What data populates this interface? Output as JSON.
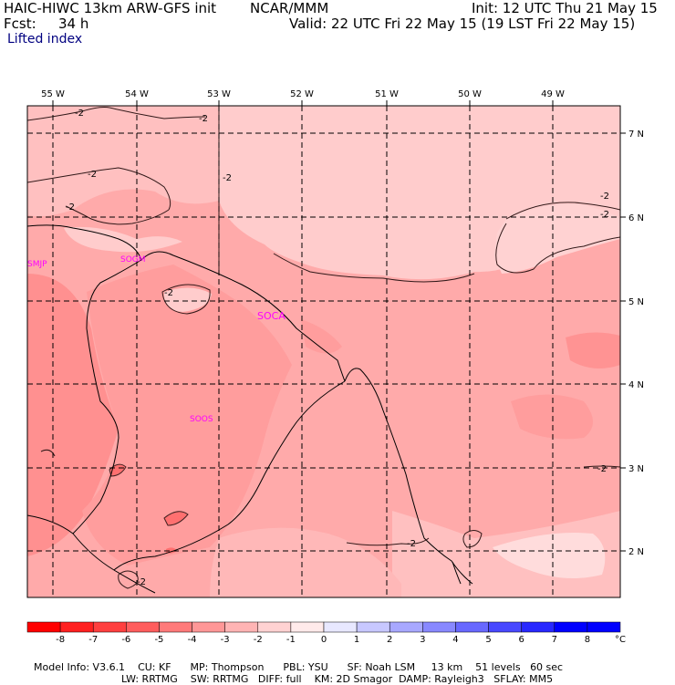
{
  "header": {
    "model": "HAIC-HIWC 13km ARW-GFS init",
    "org": "NCAR/MMM",
    "init": "Init: 12 UTC Thu 21 May 15",
    "fcst_label": "Fcst:",
    "fcst_value": "34 h",
    "valid": "Valid: 22 UTC Fri 22 May 15 (19 LST Fri 22 May 15)",
    "field": "Lifted index"
  },
  "map": {
    "lon_labels": [
      "55 W",
      "54 W",
      "53 W",
      "52 W",
      "51 W",
      "50 W",
      "49 W"
    ],
    "lat_labels": [
      "7 N",
      "6 N",
      "5 N",
      "4 N",
      "3 N",
      "2 N"
    ],
    "stations": [
      "SMJP",
      "SOGM",
      "SOCA",
      "SOOS"
    ],
    "contour_labels": [
      "-2",
      "-2",
      "-2",
      "-2",
      "-2",
      "-2",
      "-2",
      "-2",
      "-2",
      "-2",
      "-2"
    ]
  },
  "colorbar": {
    "unit": "°C",
    "ticks": [
      "-8",
      "-7",
      "-6",
      "-5",
      "-4",
      "-3",
      "-2",
      "-1",
      "0",
      "1",
      "2",
      "3",
      "4",
      "5",
      "6",
      "7",
      "8"
    ],
    "colors": [
      "#ff0000",
      "#ff2020",
      "#ff3f3f",
      "#ff5d5d",
      "#ff7a7a",
      "#ff9797",
      "#ffb4b4",
      "#ffd2d2",
      "#ffeaea",
      "#e8e8ff",
      "#c8c8ff",
      "#a8a8ff",
      "#8888ff",
      "#6868ff",
      "#4848ff",
      "#2828ff",
      "#0000ff"
    ]
  },
  "footer": {
    "line1": [
      "Model Info: V3.6.1",
      "CU: KF",
      "MP: Thompson",
      "PBL: YSU",
      "SF: Noah LSM",
      "13 km",
      "51 levels",
      "60 sec"
    ],
    "line2": [
      "LW: RRTMG",
      "SW: RRTMG",
      "DIFF: full",
      "KM: 2D Smagor",
      "DAMP: Rayleigh3",
      "SFLAY: MM5"
    ]
  }
}
